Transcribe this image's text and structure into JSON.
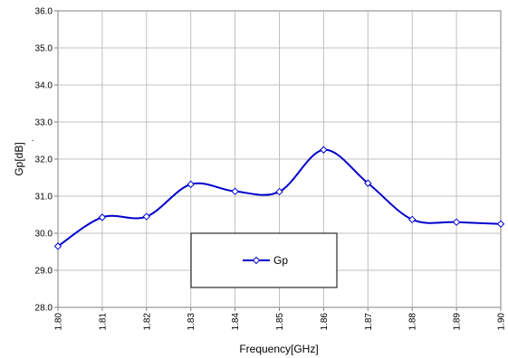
{
  "chart_data": {
    "type": "line",
    "xlabel": "Frequency[GHz]",
    "ylabel": "Gp[dB]",
    "ylabel_suffix": ".",
    "xlim": [
      1.8,
      1.9
    ],
    "ylim": [
      28.0,
      36.0
    ],
    "x_ticks": [
      "1.80",
      "1.81",
      "1.82",
      "1.83",
      "1.84",
      "1.85",
      "1.86",
      "1.87",
      "1.88",
      "1.89",
      "1.90"
    ],
    "y_ticks": [
      "28.0",
      "29.0",
      "30.0",
      "31.0",
      "32.0",
      "33.0",
      "34.0",
      "35.0",
      "36.0"
    ],
    "grid": true,
    "legend_position": "lower-center",
    "series": [
      {
        "name": "Gp",
        "color": "#0000cc",
        "marker": "diamond",
        "x": [
          1.8,
          1.81,
          1.82,
          1.83,
          1.84,
          1.85,
          1.86,
          1.87,
          1.88,
          1.89,
          1.9
        ],
        "y": [
          29.65,
          30.43,
          30.45,
          31.32,
          31.13,
          31.12,
          32.25,
          31.35,
          30.37,
          30.3,
          30.25
        ]
      }
    ]
  }
}
